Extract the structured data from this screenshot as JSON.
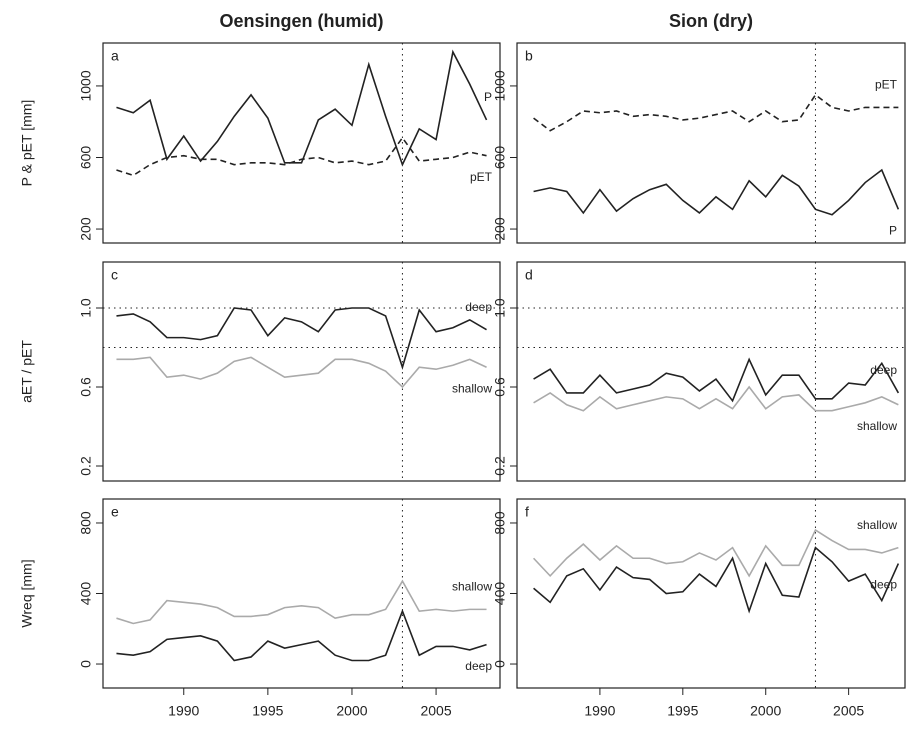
{
  "chart_data": [
    {
      "type": "line",
      "title": "Oensingen (humid)",
      "ylabel": "P & pET [mm]",
      "panel_label": "a",
      "x": [
        1986,
        1987,
        1988,
        1989,
        1990,
        1991,
        1992,
        1993,
        1994,
        1995,
        1996,
        1997,
        1998,
        1999,
        2000,
        2001,
        2002,
        2003,
        2004,
        2005,
        2006,
        2007,
        2008
      ],
      "xlim": [
        1985.2,
        2008.8
      ],
      "ylim": [
        122,
        1240
      ],
      "yticks": [
        200,
        600,
        1000
      ],
      "vline": 2003,
      "series": [
        {
          "name": "P",
          "color": "#222222",
          "dash": false,
          "values": [
            880,
            850,
            920,
            590,
            720,
            580,
            690,
            830,
            950,
            820,
            570,
            570,
            810,
            870,
            780,
            1120,
            830,
            560,
            760,
            700,
            1190,
            1010,
            810
          ]
        },
        {
          "name": "pET",
          "color": "#222222",
          "dash": true,
          "values": [
            530,
            500,
            560,
            600,
            610,
            590,
            590,
            560,
            570,
            570,
            560,
            590,
            600,
            570,
            580,
            560,
            580,
            710,
            580,
            590,
            600,
            630,
            610
          ]
        }
      ]
    },
    {
      "type": "line",
      "title": "Sion (dry)",
      "panel_label": "b",
      "x": [
        1986,
        1987,
        1988,
        1989,
        1990,
        1991,
        1992,
        1993,
        1994,
        1995,
        1996,
        1997,
        1998,
        1999,
        2000,
        2001,
        2002,
        2003,
        2004,
        2005,
        2006,
        2007,
        2008
      ],
      "xlim": [
        1985,
        2008.4
      ],
      "ylim": [
        122,
        1240
      ],
      "yticks": [
        200,
        600,
        1000
      ],
      "vline": 2003,
      "series": [
        {
          "name": "pET",
          "color": "#222222",
          "dash": true,
          "values": [
            820,
            750,
            800,
            860,
            850,
            860,
            830,
            840,
            830,
            810,
            820,
            840,
            860,
            800,
            860,
            800,
            810,
            950,
            880,
            860,
            880,
            880,
            880
          ]
        },
        {
          "name": "P",
          "color": "#222222",
          "dash": false,
          "values": [
            410,
            430,
            410,
            290,
            420,
            300,
            370,
            420,
            450,
            360,
            290,
            380,
            310,
            470,
            380,
            500,
            440,
            310,
            280,
            360,
            460,
            530,
            310
          ]
        }
      ]
    },
    {
      "type": "line",
      "ylabel": "aET / pET",
      "panel_label": "c",
      "x": [
        1986,
        1987,
        1988,
        1989,
        1990,
        1991,
        1992,
        1993,
        1994,
        1995,
        1996,
        1997,
        1998,
        1999,
        2000,
        2001,
        2002,
        2003,
        2004,
        2005,
        2006,
        2007,
        2008
      ],
      "xlim": [
        1985.2,
        2008.8
      ],
      "ylim": [
        0.124,
        1.233
      ],
      "yticks": [
        0.2,
        0.6,
        {
          "value": 1,
          "label": "1.0"
        }
      ],
      "vline": 2003,
      "hlines": [
        1,
        0.8
      ],
      "series": [
        {
          "name": "deep",
          "color": "#222222",
          "dash": false,
          "values": [
            0.96,
            0.97,
            0.93,
            0.85,
            0.85,
            0.84,
            0.86,
            1.0,
            0.99,
            0.86,
            0.95,
            0.93,
            0.88,
            0.99,
            1.0,
            1.0,
            0.96,
            0.7,
            0.99,
            0.88,
            0.9,
            0.94,
            0.89
          ]
        },
        {
          "name": "shallow",
          "color": "#aaaaaa",
          "dash": false,
          "values": [
            0.74,
            0.74,
            0.75,
            0.65,
            0.66,
            0.64,
            0.67,
            0.73,
            0.75,
            0.7,
            0.65,
            0.66,
            0.67,
            0.74,
            0.74,
            0.72,
            0.68,
            0.6,
            0.7,
            0.69,
            0.71,
            0.74,
            0.7
          ]
        }
      ]
    },
    {
      "type": "line",
      "panel_label": "d",
      "x": [
        1986,
        1987,
        1988,
        1989,
        1990,
        1991,
        1992,
        1993,
        1994,
        1995,
        1996,
        1997,
        1998,
        1999,
        2000,
        2001,
        2002,
        2003,
        2004,
        2005,
        2006,
        2007,
        2008
      ],
      "xlim": [
        1985,
        2008.4
      ],
      "ylim": [
        0.124,
        1.233
      ],
      "yticks": [
        0.2,
        0.6,
        {
          "value": 1,
          "label": "1.0"
        }
      ],
      "vline": 2003,
      "hlines": [
        1,
        0.8
      ],
      "series": [
        {
          "name": "deep",
          "color": "#222222",
          "dash": false,
          "values": [
            0.64,
            0.69,
            0.57,
            0.57,
            0.66,
            0.57,
            0.59,
            0.61,
            0.67,
            0.65,
            0.58,
            0.64,
            0.53,
            0.74,
            0.56,
            0.66,
            0.66,
            0.54,
            0.54,
            0.62,
            0.61,
            0.72,
            0.57
          ]
        },
        {
          "name": "shallow",
          "color": "#aaaaaa",
          "dash": false,
          "values": [
            0.52,
            0.57,
            0.51,
            0.48,
            0.55,
            0.49,
            0.51,
            0.53,
            0.55,
            0.54,
            0.49,
            0.54,
            0.49,
            0.6,
            0.49,
            0.55,
            0.56,
            0.48,
            0.48,
            0.5,
            0.52,
            0.55,
            0.51
          ]
        }
      ]
    },
    {
      "type": "line",
      "ylabel": "Wreq [mm]",
      "panel_label": "e",
      "x": [
        1986,
        1987,
        1988,
        1989,
        1990,
        1991,
        1992,
        1993,
        1994,
        1995,
        1996,
        1997,
        1998,
        1999,
        2000,
        2001,
        2002,
        2003,
        2004,
        2005,
        2006,
        2007,
        2008
      ],
      "xlim": [
        1985.2,
        2008.8
      ],
      "ylim": [
        -136,
        936
      ],
      "yticks": [
        0,
        400,
        800
      ],
      "xticks": [
        1990,
        1995,
        2000,
        2005
      ],
      "vline": 2003,
      "series": [
        {
          "name": "shallow",
          "color": "#aaaaaa",
          "dash": false,
          "values": [
            260,
            230,
            250,
            360,
            350,
            340,
            320,
            270,
            270,
            280,
            320,
            330,
            320,
            260,
            280,
            280,
            310,
            470,
            300,
            310,
            300,
            310,
            310
          ]
        },
        {
          "name": "deep",
          "color": "#222222",
          "dash": false,
          "values": [
            60,
            50,
            70,
            140,
            150,
            160,
            130,
            20,
            40,
            130,
            90,
            110,
            130,
            50,
            20,
            20,
            50,
            300,
            50,
            100,
            100,
            80,
            110
          ]
        }
      ]
    },
    {
      "type": "line",
      "panel_label": "f",
      "x": [
        1986,
        1987,
        1988,
        1989,
        1990,
        1991,
        1992,
        1993,
        1994,
        1995,
        1996,
        1997,
        1998,
        1999,
        2000,
        2001,
        2002,
        2003,
        2004,
        2005,
        2006,
        2007,
        2008
      ],
      "xlim": [
        1985,
        2008.4
      ],
      "ylim": [
        -136,
        936
      ],
      "yticks": [
        0,
        400,
        800
      ],
      "xticks": [
        1990,
        1995,
        2000,
        2005
      ],
      "vline": 2003,
      "series": [
        {
          "name": "shallow",
          "color": "#aaaaaa",
          "dash": false,
          "values": [
            600,
            500,
            600,
            680,
            590,
            670,
            600,
            600,
            570,
            580,
            630,
            590,
            660,
            500,
            670,
            560,
            560,
            760,
            700,
            650,
            650,
            630,
            660
          ]
        },
        {
          "name": "deep",
          "color": "#222222",
          "dash": false,
          "values": [
            430,
            350,
            500,
            540,
            420,
            550,
            490,
            480,
            400,
            410,
            510,
            440,
            600,
            300,
            570,
            390,
            380,
            660,
            580,
            470,
            510,
            360,
            570
          ]
        }
      ]
    }
  ]
}
